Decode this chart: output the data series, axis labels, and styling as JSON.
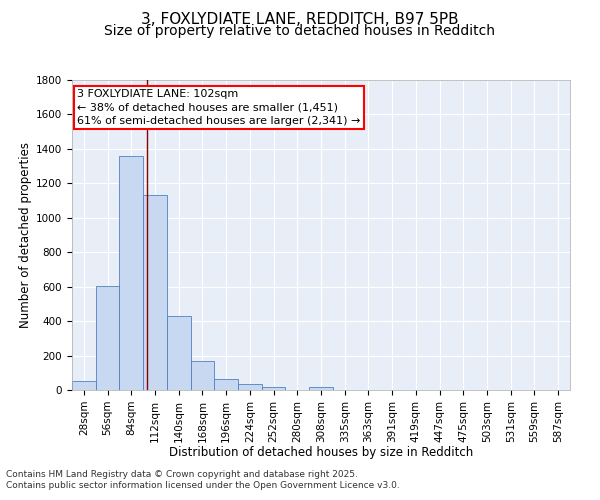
{
  "title_line1": "3, FOXLYDIATE LANE, REDDITCH, B97 5PB",
  "title_line2": "Size of property relative to detached houses in Redditch",
  "bar_labels": [
    "28sqm",
    "56sqm",
    "84sqm",
    "112sqm",
    "140sqm",
    "168sqm",
    "196sqm",
    "224sqm",
    "252sqm",
    "280sqm",
    "308sqm",
    "335sqm",
    "363sqm",
    "391sqm",
    "419sqm",
    "447sqm",
    "475sqm",
    "503sqm",
    "531sqm",
    "559sqm",
    "587sqm"
  ],
  "bar_values": [
    55,
    605,
    1360,
    1130,
    430,
    170,
    65,
    35,
    20,
    0,
    15,
    0,
    0,
    0,
    0,
    0,
    0,
    0,
    0,
    0,
    0
  ],
  "bar_color": "#c8d8f0",
  "bar_edge_color": "#5080c0",
  "background_color": "#e8eef8",
  "ylabel": "Number of detached properties",
  "xlabel": "Distribution of detached houses by size in Redditch",
  "ylim": [
    0,
    1800
  ],
  "yticks": [
    0,
    200,
    400,
    600,
    800,
    1000,
    1200,
    1400,
    1600,
    1800
  ],
  "red_line_x": 2.667,
  "annotation_title": "3 FOXLYDIATE LANE: 102sqm",
  "annotation_line1": "← 38% of detached houses are smaller (1,451)",
  "annotation_line2": "61% of semi-detached houses are larger (2,341) →",
  "footer_line1": "Contains HM Land Registry data © Crown copyright and database right 2025.",
  "footer_line2": "Contains public sector information licensed under the Open Government Licence v3.0.",
  "grid_color": "#d0d8e8",
  "title_fontsize": 11,
  "subtitle_fontsize": 10,
  "axis_label_fontsize": 8.5,
  "tick_fontsize": 7.5,
  "annotation_fontsize": 8,
  "footer_fontsize": 6.5
}
